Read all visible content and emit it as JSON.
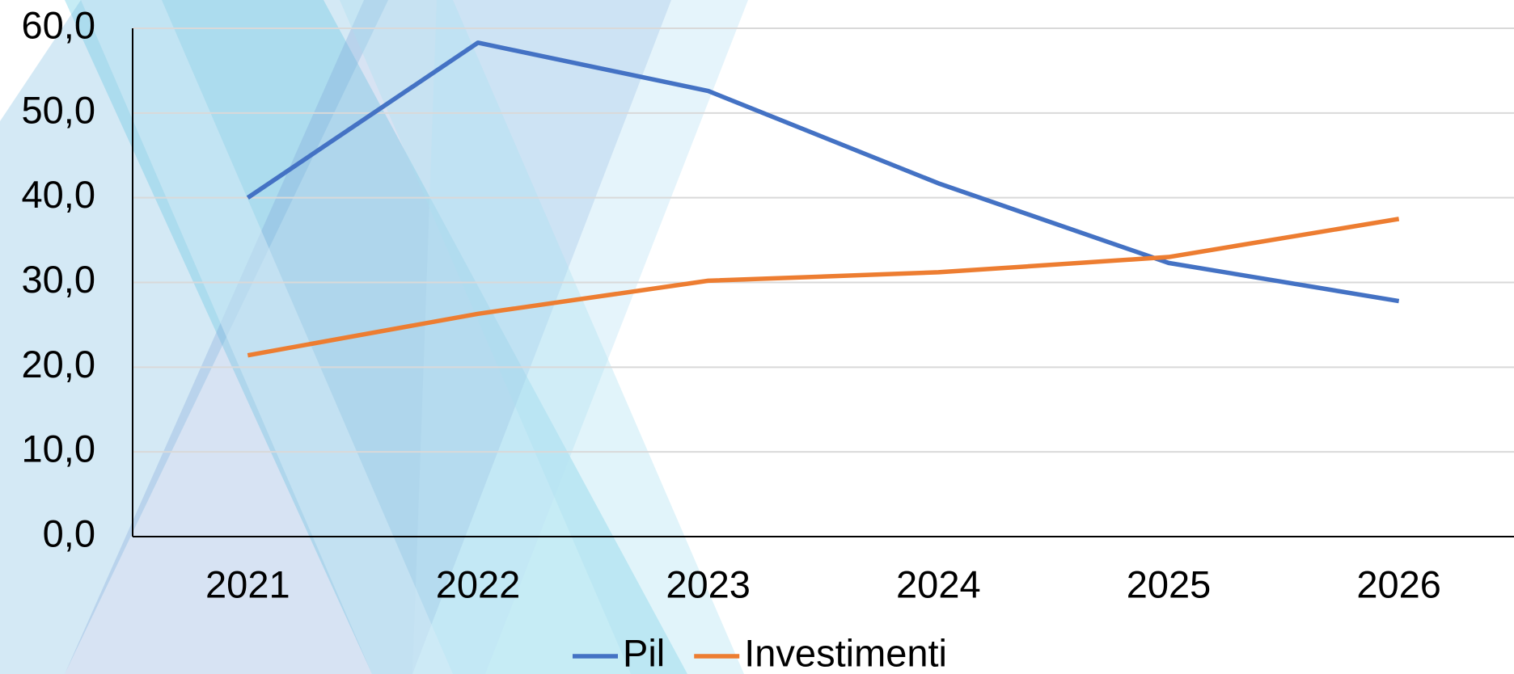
{
  "chart_data": {
    "type": "line",
    "categories": [
      "2021",
      "2022",
      "2023",
      "2024",
      "2025",
      "2026"
    ],
    "series": [
      {
        "name": "Pil",
        "color": "#4472c4",
        "values": [
          40.0,
          58.3,
          52.6,
          41.7,
          32.3,
          27.8
        ]
      },
      {
        "name": "Investimenti",
        "color": "#ed7d31",
        "values": [
          21.4,
          26.3,
          30.2,
          31.2,
          33.0,
          37.5
        ]
      }
    ],
    "ylim": [
      0,
      60
    ],
    "yticks": [
      {
        "value": 0,
        "label": "0,0"
      },
      {
        "value": 10,
        "label": "10,0"
      },
      {
        "value": 20,
        "label": "20,0"
      },
      {
        "value": 30,
        "label": "30,0"
      },
      {
        "value": 40,
        "label": "40,0"
      },
      {
        "value": 50,
        "label": "50,0"
      },
      {
        "value": 60,
        "label": "60,0"
      }
    ],
    "grid": true,
    "legend": "bottom"
  }
}
